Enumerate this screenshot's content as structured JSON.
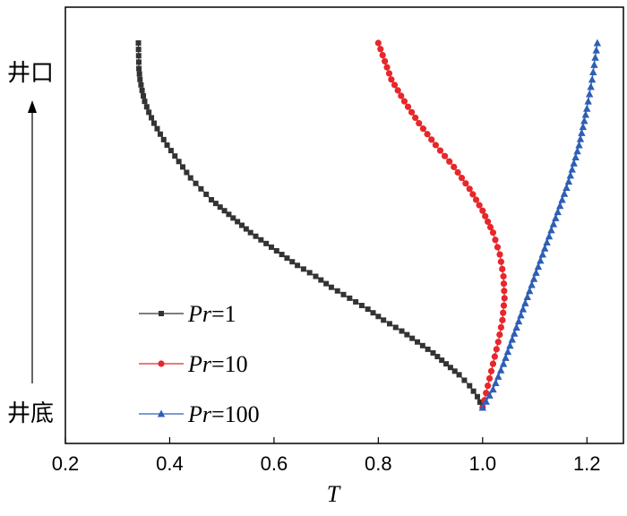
{
  "chart_data": {
    "type": "line",
    "xlabel": "T",
    "xlim": [
      0.2,
      1.27
    ],
    "xticks": [
      "0.2",
      "0.4",
      "0.6",
      "0.8",
      "1.0",
      "1.2"
    ],
    "ylim": [
      0,
      1
    ],
    "y_top_label": "井口",
    "y_bottom_label": "井底",
    "legend_position": "lower-left",
    "series": [
      {
        "name_prefix": "Pr",
        "name_value": "1",
        "color": "#333333",
        "marker": "square",
        "points": [
          [
            1.0,
            0.0
          ],
          [
            0.99,
            0.03
          ],
          [
            0.975,
            0.06
          ],
          [
            0.955,
            0.09
          ],
          [
            0.93,
            0.12
          ],
          [
            0.905,
            0.15
          ],
          [
            0.875,
            0.18
          ],
          [
            0.845,
            0.21
          ],
          [
            0.81,
            0.24
          ],
          [
            0.78,
            0.27
          ],
          [
            0.745,
            0.3
          ],
          [
            0.71,
            0.33
          ],
          [
            0.68,
            0.36
          ],
          [
            0.645,
            0.39
          ],
          [
            0.615,
            0.42
          ],
          [
            0.585,
            0.45
          ],
          [
            0.555,
            0.48
          ],
          [
            0.53,
            0.51
          ],
          [
            0.505,
            0.54
          ],
          [
            0.48,
            0.57
          ],
          [
            0.46,
            0.6
          ],
          [
            0.44,
            0.63
          ],
          [
            0.425,
            0.66
          ],
          [
            0.41,
            0.69
          ],
          [
            0.395,
            0.72
          ],
          [
            0.382,
            0.75
          ],
          [
            0.37,
            0.78
          ],
          [
            0.36,
            0.81
          ],
          [
            0.352,
            0.84
          ],
          [
            0.347,
            0.87
          ],
          [
            0.343,
            0.9
          ],
          [
            0.341,
            0.93
          ],
          [
            0.34,
            1.0
          ]
        ]
      },
      {
        "name_prefix": "Pr",
        "name_value": "10",
        "color": "#e8262b",
        "marker": "circle",
        "points": [
          [
            1.0,
            0.0
          ],
          [
            1.01,
            0.06
          ],
          [
            1.02,
            0.12
          ],
          [
            1.03,
            0.18
          ],
          [
            1.038,
            0.24
          ],
          [
            1.042,
            0.3
          ],
          [
            1.04,
            0.36
          ],
          [
            1.033,
            0.42
          ],
          [
            1.02,
            0.48
          ],
          [
            1.0,
            0.54
          ],
          [
            0.975,
            0.6
          ],
          [
            0.945,
            0.66
          ],
          [
            0.91,
            0.72
          ],
          [
            0.878,
            0.78
          ],
          [
            0.85,
            0.84
          ],
          [
            0.825,
            0.9
          ],
          [
            0.8,
            1.0
          ]
        ]
      },
      {
        "name_prefix": "Pr",
        "name_value": "100",
        "color": "#2d5fb6",
        "marker": "triangle",
        "points": [
          [
            1.0,
            0.0
          ],
          [
            1.02,
            0.05
          ],
          [
            1.04,
            0.12
          ],
          [
            1.065,
            0.22
          ],
          [
            1.09,
            0.32
          ],
          [
            1.115,
            0.42
          ],
          [
            1.14,
            0.52
          ],
          [
            1.165,
            0.62
          ],
          [
            1.185,
            0.72
          ],
          [
            1.2,
            0.82
          ],
          [
            1.21,
            0.9
          ],
          [
            1.22,
            1.0
          ]
        ]
      }
    ]
  }
}
